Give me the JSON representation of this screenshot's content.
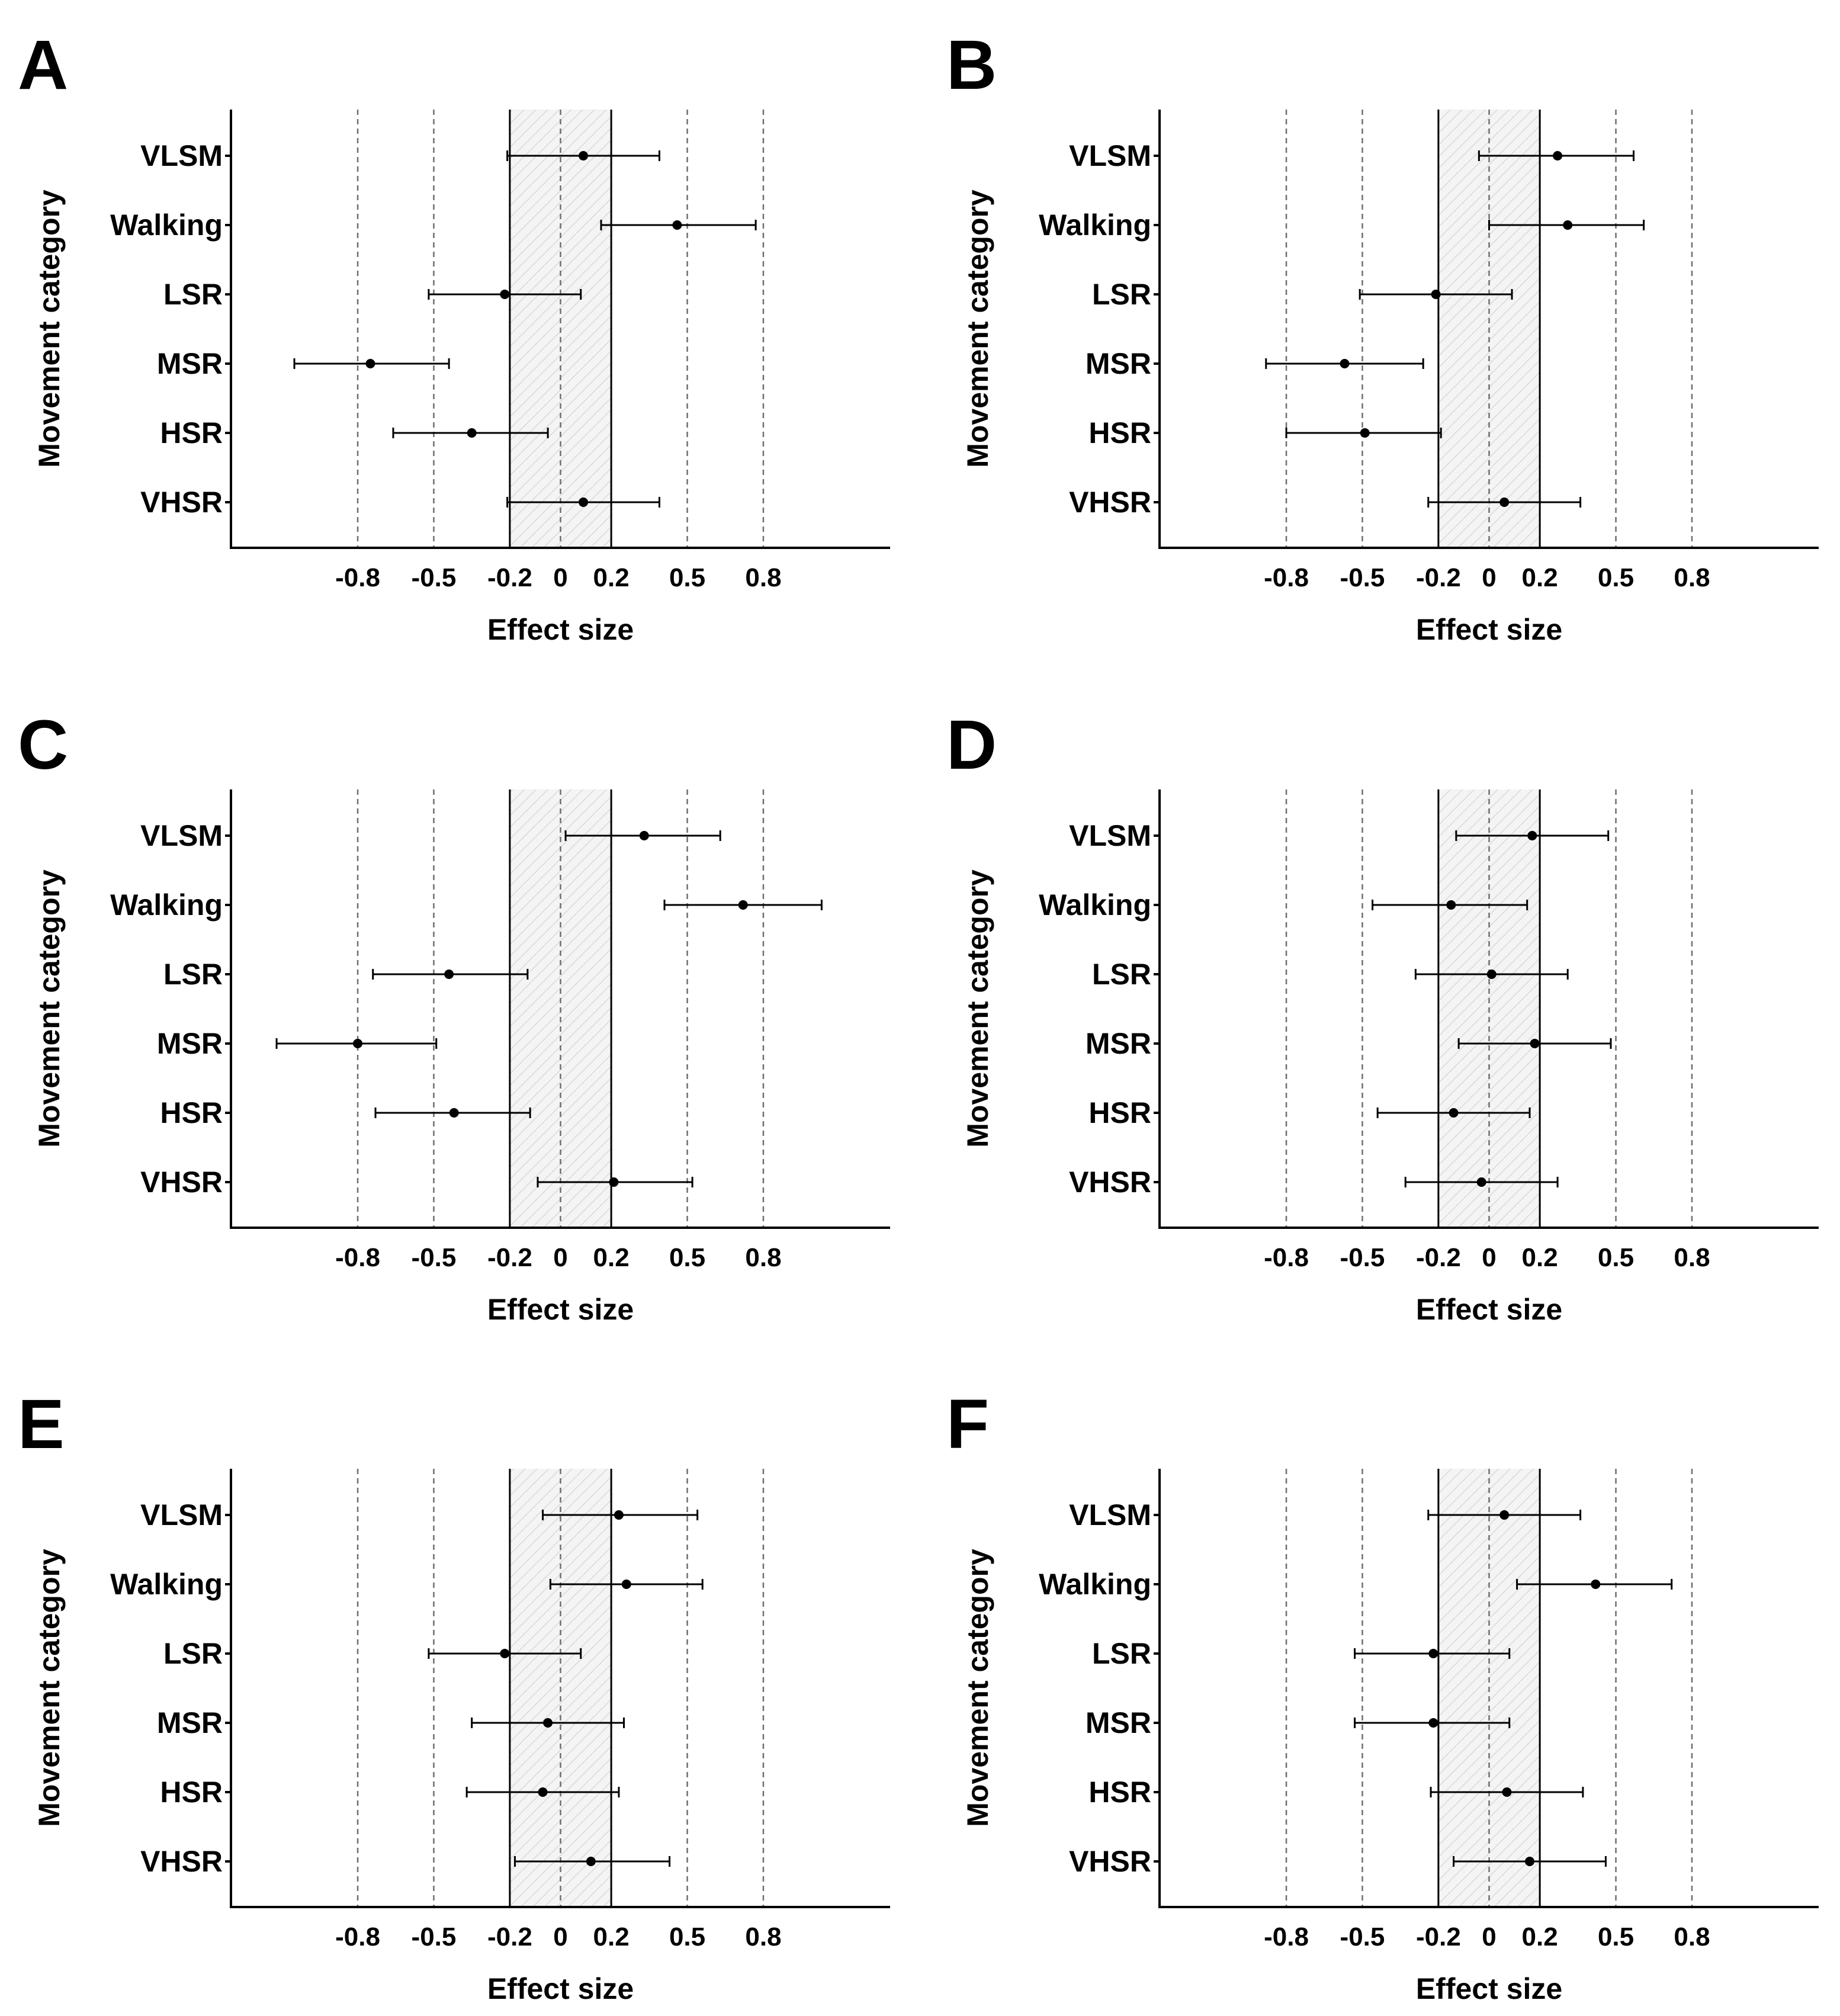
{
  "x_axis_title": "Effect size",
  "y_axis_title": "Movement category",
  "chart_data": [
    {
      "type": "forest",
      "panel": "A",
      "title": "A",
      "xlabel": "Effect size",
      "ylabel": "Movement category",
      "xlim": [
        -1.3,
        1.3
      ],
      "xticks": [
        -0.8,
        -0.5,
        -0.2,
        0,
        0.2,
        0.5,
        0.8
      ],
      "xtick_labels": [
        "-0.8",
        "-0.5",
        "-0.2",
        "0",
        "0.2",
        "0.5",
        "0.8"
      ],
      "trivial_band": [
        -0.2,
        0.2
      ],
      "categories": [
        "VLSM",
        "Walking",
        "LSR",
        "MSR",
        "HSR",
        "VHSR"
      ],
      "estimates": [
        0.09,
        0.46,
        -0.22,
        -0.75,
        -0.35,
        0.09
      ],
      "ci_lower": [
        -0.21,
        0.16,
        -0.52,
        -1.05,
        -0.66,
        -0.21
      ],
      "ci_upper": [
        0.39,
        0.77,
        0.08,
        -0.44,
        -0.05,
        0.39
      ]
    },
    {
      "type": "forest",
      "panel": "B",
      "title": "B",
      "xlabel": "Effect size",
      "ylabel": "Movement category",
      "xlim": [
        -1.3,
        1.3
      ],
      "xticks": [
        -0.8,
        -0.5,
        -0.2,
        0,
        0.2,
        0.5,
        0.8
      ],
      "xtick_labels": [
        "-0.8",
        "-0.5",
        "-0.2",
        "0",
        "0.2",
        "0.5",
        "0.8"
      ],
      "trivial_band": [
        -0.2,
        0.2
      ],
      "categories": [
        "VLSM",
        "Walking",
        "LSR",
        "MSR",
        "HSR",
        "VHSR"
      ],
      "estimates": [
        0.27,
        0.31,
        -0.21,
        -0.57,
        -0.49,
        0.06
      ],
      "ci_lower": [
        -0.04,
        0.0,
        -0.51,
        -0.88,
        -0.8,
        -0.24
      ],
      "ci_upper": [
        0.57,
        0.61,
        0.09,
        -0.26,
        -0.19,
        0.36
      ]
    },
    {
      "type": "forest",
      "panel": "C",
      "title": "C",
      "xlabel": "Effect size",
      "ylabel": "Movement category",
      "xlim": [
        -1.3,
        1.3
      ],
      "xticks": [
        -0.8,
        -0.5,
        -0.2,
        0,
        0.2,
        0.5,
        0.8
      ],
      "xtick_labels": [
        "-0.8",
        "-0.5",
        "-0.2",
        "0",
        "0.2",
        "0.5",
        "0.8"
      ],
      "trivial_band": [
        -0.2,
        0.2
      ],
      "categories": [
        "VLSM",
        "Walking",
        "LSR",
        "MSR",
        "HSR",
        "VHSR"
      ],
      "estimates": [
        0.33,
        0.72,
        -0.44,
        -0.8,
        -0.42,
        0.21
      ],
      "ci_lower": [
        0.02,
        0.41,
        -0.74,
        -1.12,
        -0.73,
        -0.09
      ],
      "ci_upper": [
        0.63,
        1.03,
        -0.13,
        -0.49,
        -0.12,
        0.52
      ]
    },
    {
      "type": "forest",
      "panel": "D",
      "title": "D",
      "xlabel": "Effect size",
      "ylabel": "Movement category",
      "xlim": [
        -1.3,
        1.3
      ],
      "xticks": [
        -0.8,
        -0.5,
        -0.2,
        0,
        0.2,
        0.5,
        0.8
      ],
      "xtick_labels": [
        "-0.8",
        "-0.5",
        "-0.2",
        "0",
        "0.2",
        "0.5",
        "0.8"
      ],
      "trivial_band": [
        -0.2,
        0.2
      ],
      "categories": [
        "VLSM",
        "Walking",
        "LSR",
        "MSR",
        "HSR",
        "VHSR"
      ],
      "estimates": [
        0.17,
        -0.15,
        0.01,
        0.18,
        -0.14,
        -0.03
      ],
      "ci_lower": [
        -0.13,
        -0.46,
        -0.29,
        -0.12,
        -0.44,
        -0.33
      ],
      "ci_upper": [
        0.47,
        0.15,
        0.31,
        0.48,
        0.16,
        0.27
      ]
    },
    {
      "type": "forest",
      "panel": "E",
      "title": "E",
      "xlabel": "Effect size",
      "ylabel": "Movement category",
      "xlim": [
        -1.3,
        1.3
      ],
      "xticks": [
        -0.8,
        -0.5,
        -0.2,
        0,
        0.2,
        0.5,
        0.8
      ],
      "xtick_labels": [
        "-0.8",
        "-0.5",
        "-0.2",
        "0",
        "0.2",
        "0.5",
        "0.8"
      ],
      "trivial_band": [
        -0.2,
        0.2
      ],
      "categories": [
        "VLSM",
        "Walking",
        "LSR",
        "MSR",
        "HSR",
        "VHSR"
      ],
      "estimates": [
        0.23,
        0.26,
        -0.22,
        -0.05,
        -0.07,
        0.12
      ],
      "ci_lower": [
        -0.07,
        -0.04,
        -0.52,
        -0.35,
        -0.37,
        -0.18
      ],
      "ci_upper": [
        0.54,
        0.56,
        0.08,
        0.25,
        0.23,
        0.43
      ]
    },
    {
      "type": "forest",
      "panel": "F",
      "title": "F",
      "xlabel": "Effect size",
      "ylabel": "Movement category",
      "xlim": [
        -1.3,
        1.3
      ],
      "xticks": [
        -0.8,
        -0.5,
        -0.2,
        0,
        0.2,
        0.5,
        0.8
      ],
      "xtick_labels": [
        "-0.8",
        "-0.5",
        "-0.2",
        "0",
        "0.2",
        "0.5",
        "0.8"
      ],
      "trivial_band": [
        -0.2,
        0.2
      ],
      "categories": [
        "VLSM",
        "Walking",
        "LSR",
        "MSR",
        "HSR",
        "VHSR"
      ],
      "estimates": [
        0.06,
        0.42,
        -0.22,
        -0.22,
        0.07,
        0.16
      ],
      "ci_lower": [
        -0.24,
        0.11,
        -0.53,
        -0.53,
        -0.23,
        -0.14
      ],
      "ci_upper": [
        0.36,
        0.72,
        0.08,
        0.08,
        0.37,
        0.46
      ]
    }
  ]
}
